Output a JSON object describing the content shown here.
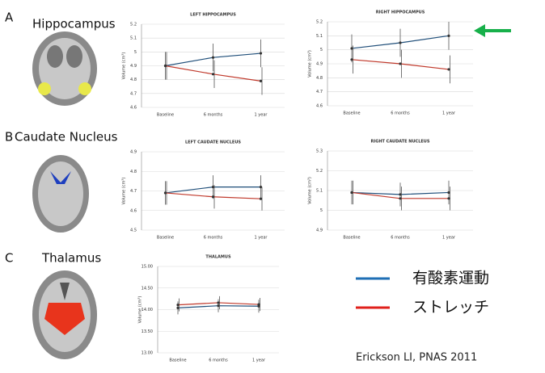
{
  "panels": [
    {
      "letter": "A",
      "label": "Hippocampus"
    },
    {
      "letter": "B",
      "label": "Caudate Nucleus"
    },
    {
      "letter": "C",
      "label": "Thalamus"
    }
  ],
  "legend": [
    {
      "label": "有酸素運動",
      "color": "#1f6fb5"
    },
    {
      "label": "ストレッチ",
      "color": "#e0201b"
    }
  ],
  "citation": "Erickson LI, PNAS 2011",
  "chart_data": [
    {
      "type": "line",
      "title": "LEFT HIPPOCAMPUS",
      "ylabel": "Volume (cm³)",
      "categories": [
        "Baseline",
        "6 months",
        "1 year"
      ],
      "series": [
        {
          "color": "#1f4e79",
          "values": [
            4.9,
            4.96,
            4.99
          ],
          "errors": [
            0.1,
            0.1,
            0.1
          ]
        },
        {
          "color": "#c0392b",
          "values": [
            4.9,
            4.84,
            4.79
          ],
          "errors": [
            0.1,
            0.1,
            0.1
          ]
        }
      ],
      "ylim": [
        4.6,
        5.2
      ],
      "yticks": [
        4.6,
        4.7,
        4.8,
        4.9,
        5,
        5.1,
        5.2
      ],
      "grid": true
    },
    {
      "type": "line",
      "title": "RIGHT HIPPOCAMPUS",
      "ylabel": "Volume (cm³)",
      "categories": [
        "Baseline",
        "6 months",
        "1 year"
      ],
      "series": [
        {
          "color": "#1f4e79",
          "values": [
            5.01,
            5.05,
            5.1
          ],
          "errors": [
            0.1,
            0.1,
            0.1
          ]
        },
        {
          "color": "#c0392b",
          "values": [
            4.93,
            4.9,
            4.86
          ],
          "errors": [
            0.1,
            0.1,
            0.1
          ]
        }
      ],
      "ylim": [
        4.6,
        5.2
      ],
      "yticks": [
        4.6,
        4.7,
        4.8,
        4.9,
        5,
        5.1,
        5.2
      ],
      "grid": true
    },
    {
      "type": "line",
      "title": "LEFT CAUDATE NUCLEUS",
      "ylabel": "Volume (cm³)",
      "categories": [
        "Baseline",
        "6 months",
        "1 year"
      ],
      "series": [
        {
          "color": "#1f4e79",
          "values": [
            4.69,
            4.72,
            4.72
          ],
          "errors": [
            0.06,
            0.06,
            0.06
          ]
        },
        {
          "color": "#c0392b",
          "values": [
            4.69,
            4.67,
            4.66
          ],
          "errors": [
            0.06,
            0.06,
            0.06
          ]
        }
      ],
      "ylim": [
        4.5,
        4.9
      ],
      "yticks": [
        4.5,
        4.6,
        4.7,
        4.8,
        4.9
      ],
      "grid": true
    },
    {
      "type": "line",
      "title": "RIGHT CAUDATE NUCLEUS",
      "ylabel": "Volume (cm³)",
      "categories": [
        "Baseline",
        "6 months",
        "1 year"
      ],
      "series": [
        {
          "color": "#1f4e79",
          "values": [
            5.09,
            5.08,
            5.09
          ],
          "errors": [
            0.06,
            0.06,
            0.06
          ]
        },
        {
          "color": "#c0392b",
          "values": [
            5.09,
            5.06,
            5.06
          ],
          "errors": [
            0.06,
            0.06,
            0.06
          ]
        }
      ],
      "ylim": [
        4.9,
        5.3
      ],
      "yticks": [
        4.9,
        5,
        5.1,
        5.2,
        5.3
      ],
      "grid": true
    },
    {
      "type": "line",
      "title": "THALAMUS",
      "ylabel": "Volume (cm³)",
      "categories": [
        "Baseline",
        "6 months",
        "1 year"
      ],
      "series": [
        {
          "color": "#1f4e79",
          "values": [
            14.04,
            14.09,
            14.08
          ],
          "errors": [
            0.15,
            0.15,
            0.15
          ]
        },
        {
          "color": "#c0392b",
          "values": [
            14.11,
            14.16,
            14.12
          ],
          "errors": [
            0.15,
            0.15,
            0.15
          ]
        }
      ],
      "ylim": [
        13,
        15
      ],
      "yticks": [
        {
          "value": 13,
          "label": "13.00"
        },
        {
          "value": 13.5,
          "label": "13.50"
        },
        {
          "value": 14,
          "label": "14.00"
        },
        {
          "value": 14.5,
          "label": "14.50"
        },
        {
          "value": 15,
          "label": "15.00"
        }
      ],
      "grid": true
    }
  ]
}
